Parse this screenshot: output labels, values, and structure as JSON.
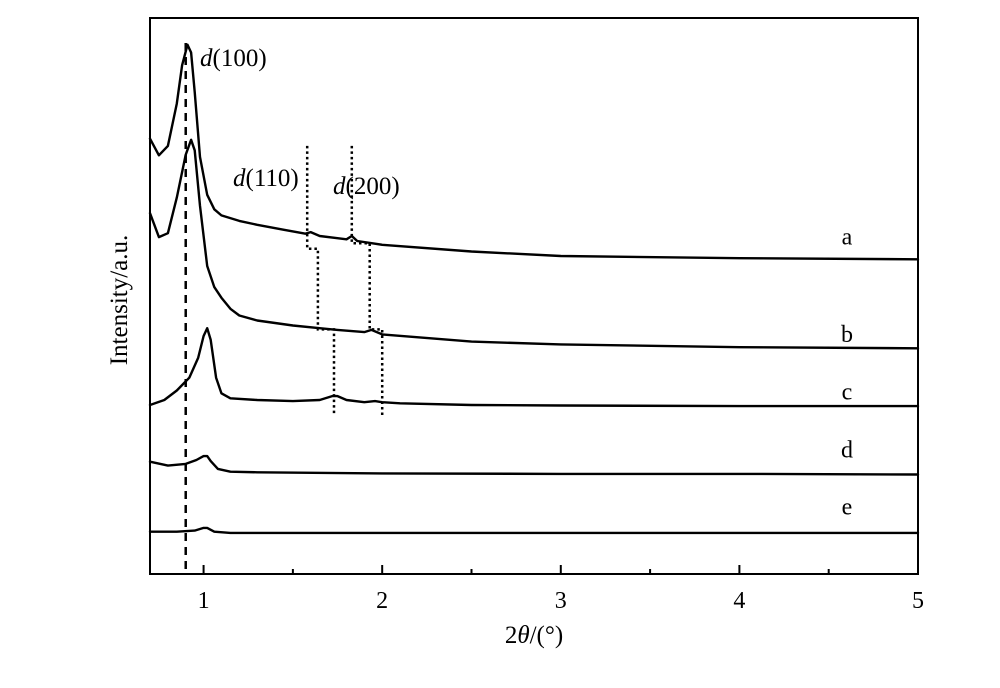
{
  "chart_data": {
    "type": "line",
    "xlabel_prefix": "2",
    "xlabel_symbol": "θ",
    "xlabel_suffix": "/(°)",
    "ylabel": "Intensity/a.u.",
    "xlim": [
      0.7,
      5.0
    ],
    "ylim": [
      0,
      100
    ],
    "x_ticks": [
      1,
      2,
      3,
      4,
      5
    ],
    "x_tick_labels": [
      "1",
      "2",
      "3",
      "4",
      "5"
    ],
    "x_minor_ticks": [
      1.5,
      2.5,
      3.5,
      4.5
    ],
    "grid": false,
    "legend": "none",
    "series": [
      {
        "name": "a",
        "points": [
          [
            0.7,
            78.3
          ],
          [
            0.75,
            75.3
          ],
          [
            0.8,
            77.0
          ],
          [
            0.85,
            84.6
          ],
          [
            0.88,
            91.5
          ],
          [
            0.91,
            95.2
          ],
          [
            0.93,
            93.8
          ],
          [
            0.95,
            86.7
          ],
          [
            0.98,
            75.0
          ],
          [
            1.02,
            68.2
          ],
          [
            1.06,
            65.6
          ],
          [
            1.1,
            64.5
          ],
          [
            1.2,
            63.5
          ],
          [
            1.3,
            62.8
          ],
          [
            1.45,
            61.9
          ],
          [
            1.57,
            61.2
          ],
          [
            1.6,
            61.5
          ],
          [
            1.65,
            60.8
          ],
          [
            1.75,
            60.4
          ],
          [
            1.8,
            60.2
          ],
          [
            1.83,
            60.8
          ],
          [
            1.86,
            59.9
          ],
          [
            2.0,
            59.2
          ],
          [
            2.5,
            58.0
          ],
          [
            3.0,
            57.2
          ],
          [
            4.0,
            56.8
          ],
          [
            5.0,
            56.6
          ]
        ]
      },
      {
        "name": "b",
        "points": [
          [
            0.7,
            64.9
          ],
          [
            0.75,
            60.6
          ],
          [
            0.8,
            61.3
          ],
          [
            0.85,
            67.7
          ],
          [
            0.9,
            75.4
          ],
          [
            0.93,
            78.1
          ],
          [
            0.95,
            76.2
          ],
          [
            0.98,
            66.2
          ],
          [
            1.02,
            55.4
          ],
          [
            1.06,
            51.6
          ],
          [
            1.1,
            49.7
          ],
          [
            1.15,
            47.7
          ],
          [
            1.2,
            46.5
          ],
          [
            1.3,
            45.6
          ],
          [
            1.5,
            44.7
          ],
          [
            1.65,
            44.2
          ],
          [
            1.75,
            43.9
          ],
          [
            1.9,
            43.5
          ],
          [
            1.94,
            43.9
          ],
          [
            2.0,
            43.1
          ],
          [
            2.5,
            41.8
          ],
          [
            3.0,
            41.3
          ],
          [
            4.0,
            40.8
          ],
          [
            5.0,
            40.6
          ]
        ]
      },
      {
        "name": "c",
        "points": [
          [
            0.7,
            30.4
          ],
          [
            0.78,
            31.3
          ],
          [
            0.85,
            33.0
          ],
          [
            0.92,
            35.3
          ],
          [
            0.97,
            38.9
          ],
          [
            1.0,
            42.8
          ],
          [
            1.02,
            44.2
          ],
          [
            1.04,
            42.1
          ],
          [
            1.07,
            35.3
          ],
          [
            1.1,
            32.5
          ],
          [
            1.15,
            31.6
          ],
          [
            1.3,
            31.3
          ],
          [
            1.5,
            31.1
          ],
          [
            1.65,
            31.3
          ],
          [
            1.72,
            32.0
          ],
          [
            1.75,
            32.0
          ],
          [
            1.8,
            31.3
          ],
          [
            1.9,
            30.9
          ],
          [
            1.96,
            31.1
          ],
          [
            2.0,
            30.9
          ],
          [
            2.1,
            30.7
          ],
          [
            2.5,
            30.4
          ],
          [
            3.0,
            30.3
          ],
          [
            4.0,
            30.2
          ],
          [
            5.0,
            30.2
          ]
        ]
      },
      {
        "name": "d",
        "points": [
          [
            0.7,
            20.2
          ],
          [
            0.8,
            19.5
          ],
          [
            0.9,
            19.8
          ],
          [
            0.96,
            20.5
          ],
          [
            1.0,
            21.2
          ],
          [
            1.02,
            21.2
          ],
          [
            1.04,
            20.3
          ],
          [
            1.08,
            18.9
          ],
          [
            1.15,
            18.4
          ],
          [
            1.3,
            18.3
          ],
          [
            2.0,
            18.1
          ],
          [
            3.0,
            18.0
          ],
          [
            4.0,
            18.0
          ],
          [
            5.0,
            17.9
          ]
        ]
      },
      {
        "name": "e",
        "points": [
          [
            0.7,
            7.6
          ],
          [
            0.85,
            7.6
          ],
          [
            0.95,
            7.8
          ],
          [
            1.0,
            8.3
          ],
          [
            1.02,
            8.3
          ],
          [
            1.06,
            7.6
          ],
          [
            1.15,
            7.4
          ],
          [
            2.0,
            7.4
          ],
          [
            3.0,
            7.4
          ],
          [
            4.0,
            7.4
          ],
          [
            5.0,
            7.4
          ]
        ]
      }
    ],
    "annotations": {
      "d100": {
        "label_italic": "d",
        "label_rest": "(100)",
        "x": 0.9,
        "style": "dashed"
      },
      "d110": {
        "label_italic": "d",
        "label_rest": "(110)",
        "steps": [
          [
            1.58,
            77
          ],
          [
            1.58,
            58.5
          ],
          [
            1.64,
            58.5
          ],
          [
            1.64,
            44
          ],
          [
            1.73,
            44
          ],
          [
            1.73,
            28.5
          ]
        ],
        "style": "dotted"
      },
      "d200": {
        "label_italic": "d",
        "label_rest": "(200)",
        "steps": [
          [
            1.83,
            77
          ],
          [
            1.83,
            59.5
          ],
          [
            1.93,
            59.5
          ],
          [
            1.93,
            44
          ],
          [
            2.0,
            44
          ],
          [
            2.0,
            28.5
          ]
        ],
        "style": "dotted"
      }
    },
    "curve_labels": [
      {
        "text": "a",
        "y": 60.7
      },
      {
        "text": "b",
        "y": 43.2
      },
      {
        "text": "c",
        "y": 32.8
      },
      {
        "text": "d",
        "y": 22.4
      },
      {
        "text": "e",
        "y": 12.1
      }
    ]
  }
}
